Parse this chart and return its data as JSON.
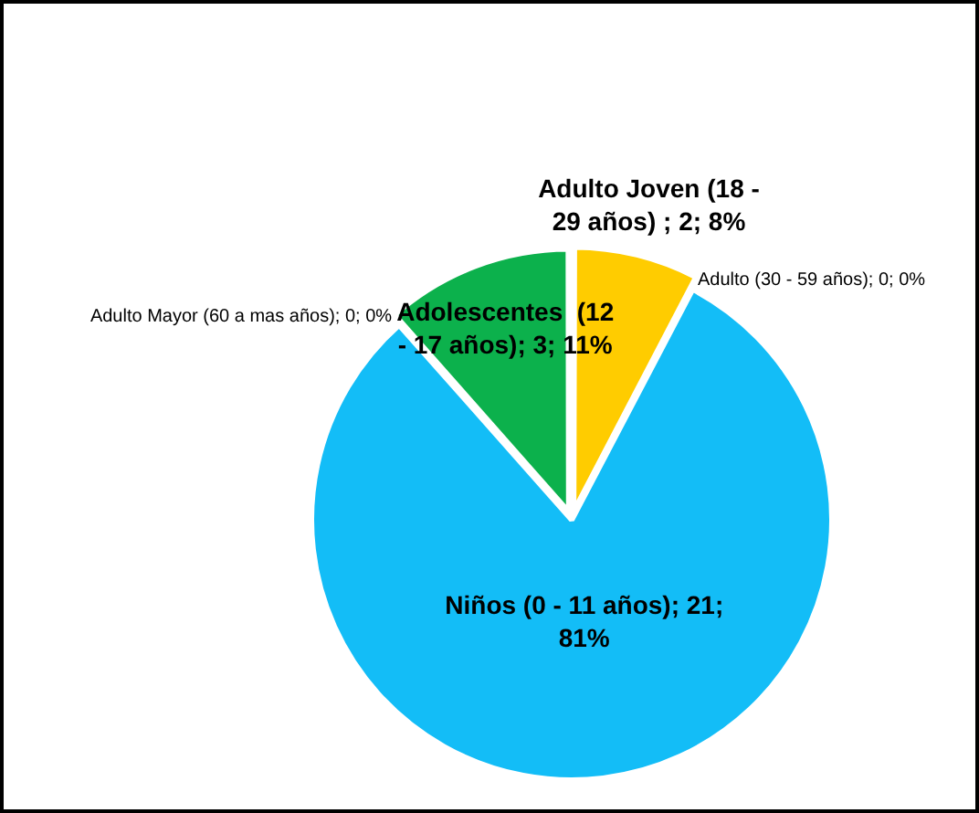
{
  "chart_data": {
    "type": "pie",
    "categories": [
      "Adulto Joven (18 - 29 años)",
      "Adulto (30 - 59 años)",
      "Niños (0 - 11 años)",
      "Adulto Mayor (60 a mas años)",
      "Adolescentes  (12 - 17 años)"
    ],
    "values": [
      2,
      0,
      21,
      0,
      3
    ],
    "colors": [
      "#ffcc00",
      "#00b0f0",
      "#13bdf7",
      "#7f7f7f",
      "#0cb14c"
    ],
    "value_labels": [
      " ; 2; 8%",
      "; 0; 0%",
      "; 21; 81%",
      "; 0; 0%",
      "; 3; 11%"
    ],
    "legend": false
  }
}
